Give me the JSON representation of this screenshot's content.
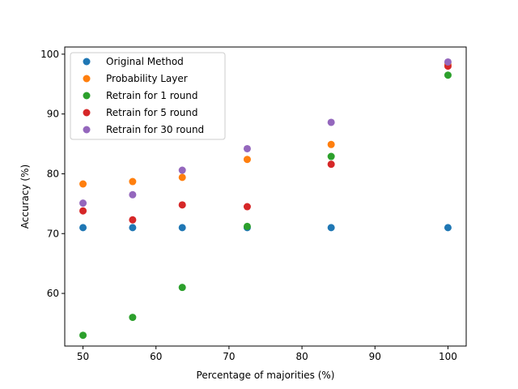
{
  "chart_data": {
    "type": "scatter",
    "title": "",
    "xlabel": "Percentage of majorities (%)",
    "ylabel": "Accuracy (%)",
    "xlim": [
      47.5,
      102.5
    ],
    "ylim": [
      51.2,
      101.2
    ],
    "xticks": [
      50,
      60,
      70,
      80,
      90,
      100
    ],
    "yticks": [
      60,
      70,
      80,
      90,
      100
    ],
    "x": [
      50,
      56.8,
      63.6,
      72.5,
      84,
      100
    ],
    "legend_position": "upper-left",
    "grid": false,
    "series": [
      {
        "name": "Original Method",
        "color": "#1f77b4",
        "values": [
          71.0,
          71.0,
          71.0,
          71.0,
          71.0,
          71.0
        ]
      },
      {
        "name": "Probability Layer",
        "color": "#ff7f0e",
        "values": [
          78.3,
          78.7,
          79.4,
          82.4,
          84.9,
          98.3
        ]
      },
      {
        "name": "Retrain for 1 round",
        "color": "#2ca02c",
        "values": [
          53.0,
          56.0,
          61.0,
          71.2,
          82.9,
          96.5
        ]
      },
      {
        "name": "Retrain for 5 round",
        "color": "#d62728",
        "values": [
          73.8,
          72.3,
          74.8,
          74.5,
          81.6,
          98.0
        ]
      },
      {
        "name": "Retrain for 30 round",
        "color": "#9467bd",
        "values": [
          75.1,
          76.5,
          80.6,
          84.2,
          88.6,
          98.7
        ]
      }
    ]
  }
}
